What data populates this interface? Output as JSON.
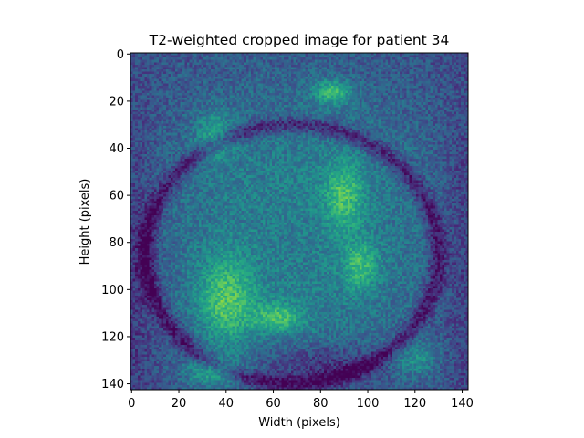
{
  "chart_data": {
    "type": "heatmap",
    "title": "T2-weighted cropped image for patient 34",
    "xlabel": "Width (pixels)",
    "ylabel": "Height (pixels)",
    "x_ticks": [
      "0",
      "20",
      "40",
      "60",
      "80",
      "100",
      "120",
      "140"
    ],
    "y_ticks": [
      "0",
      "20",
      "40",
      "60",
      "80",
      "100",
      "120",
      "140"
    ],
    "xlim": [
      -0.5,
      142.5
    ],
    "ylim": [
      142.5,
      -0.5
    ],
    "image_size": [
      143,
      143
    ],
    "y_axis_inverted": true,
    "colormap": "viridis",
    "grid": false,
    "legend": "none",
    "colors": {
      "viridis_low": "#440154",
      "viridis_mid": "#21918c",
      "viridis_high": "#fde725"
    }
  }
}
